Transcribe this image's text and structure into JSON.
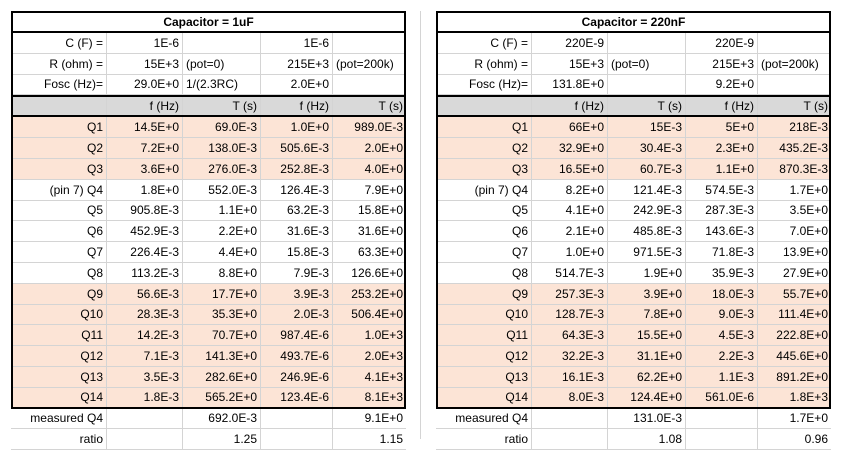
{
  "left": {
    "title": "Capacitor = 1uF",
    "params": [
      {
        "label": "C (F) =",
        "v1": "1E-6",
        "v2": "",
        "v3": "1E-6",
        "v4": ""
      },
      {
        "label": "R (ohm) =",
        "v1": "15E+3",
        "v2": "(pot=0)",
        "v3": "215E+3",
        "v4": "(pot=200k)"
      },
      {
        "label": "Fosc (Hz)=",
        "v1": "29.0E+0",
        "v2": "1/(2.3RC)",
        "v3": "2.0E+0",
        "v4": ""
      }
    ],
    "headers": [
      "",
      "f (Hz)",
      "T (s)",
      "f (Hz)",
      "T (s)"
    ],
    "rows": [
      [
        "Q1",
        "14.5E+0",
        "69.0E-3",
        "1.0E+0",
        "989.0E-3"
      ],
      [
        "Q2",
        "7.2E+0",
        "138.0E-3",
        "505.6E-3",
        "2.0E+0"
      ],
      [
        "Q3",
        "3.6E+0",
        "276.0E-3",
        "252.8E-3",
        "4.0E+0"
      ],
      [
        "(pin 7) Q4",
        "1.8E+0",
        "552.0E-3",
        "126.4E-3",
        "7.9E+0"
      ],
      [
        "Q5",
        "905.8E-3",
        "1.1E+0",
        "63.2E-3",
        "15.8E+0"
      ],
      [
        "Q6",
        "452.9E-3",
        "2.2E+0",
        "31.6E-3",
        "31.6E+0"
      ],
      [
        "Q7",
        "226.4E-3",
        "4.4E+0",
        "15.8E-3",
        "63.3E+0"
      ],
      [
        "Q8",
        "113.2E-3",
        "8.8E+0",
        "7.9E-3",
        "126.6E+0"
      ],
      [
        "Q9",
        "56.6E-3",
        "17.7E+0",
        "3.9E-3",
        "253.2E+0"
      ],
      [
        "Q10",
        "28.3E-3",
        "35.3E+0",
        "2.0E-3",
        "506.4E+0"
      ],
      [
        "Q11",
        "14.2E-3",
        "70.7E+0",
        "987.4E-6",
        "1.0E+3"
      ],
      [
        "Q12",
        "7.1E-3",
        "141.3E+0",
        "493.7E-6",
        "2.0E+3"
      ],
      [
        "Q13",
        "3.5E-3",
        "282.6E+0",
        "246.9E-6",
        "4.1E+3"
      ],
      [
        "Q14",
        "1.8E-3",
        "565.2E+0",
        "123.4E-6",
        "8.1E+3"
      ]
    ],
    "measured": {
      "label": "measured Q4",
      "v1": "",
      "v2": "692.0E-3",
      "v3": "",
      "v4": "9.1E+0"
    },
    "ratio": {
      "label": "ratio",
      "v1": "",
      "v2": "1.25",
      "v3": "",
      "v4": "1.15"
    }
  },
  "right": {
    "title": "Capacitor = 220nF",
    "params": [
      {
        "label": "C (F) =",
        "v1": "220E-9",
        "v2": "",
        "v3": "220E-9",
        "v4": ""
      },
      {
        "label": "R (ohm) =",
        "v1": "15E+3",
        "v2": "(pot=0)",
        "v3": "215E+3",
        "v4": "(pot=200k)"
      },
      {
        "label": "Fosc (Hz)=",
        "v1": "131.8E+0",
        "v2": "",
        "v3": "9.2E+0",
        "v4": ""
      }
    ],
    "headers": [
      "",
      "f (Hz)",
      "T (s)",
      "f (Hz)",
      "T (s)"
    ],
    "rows": [
      [
        "Q1",
        "66E+0",
        "15E-3",
        "5E+0",
        "218E-3"
      ],
      [
        "Q2",
        "32.9E+0",
        "30.4E-3",
        "2.3E+0",
        "435.2E-3"
      ],
      [
        "Q3",
        "16.5E+0",
        "60.7E-3",
        "1.1E+0",
        "870.3E-3"
      ],
      [
        "(pin 7) Q4",
        "8.2E+0",
        "121.4E-3",
        "574.5E-3",
        "1.7E+0"
      ],
      [
        "Q5",
        "4.1E+0",
        "242.9E-3",
        "287.3E-3",
        "3.5E+0"
      ],
      [
        "Q6",
        "2.1E+0",
        "485.8E-3",
        "143.6E-3",
        "7.0E+0"
      ],
      [
        "Q7",
        "1.0E+0",
        "971.5E-3",
        "71.8E-3",
        "13.9E+0"
      ],
      [
        "Q8",
        "514.7E-3",
        "1.9E+0",
        "35.9E-3",
        "27.9E+0"
      ],
      [
        "Q9",
        "257.3E-3",
        "3.9E+0",
        "18.0E-3",
        "55.7E+0"
      ],
      [
        "Q10",
        "128.7E-3",
        "7.8E+0",
        "9.0E-3",
        "111.4E+0"
      ],
      [
        "Q11",
        "64.3E-3",
        "15.5E+0",
        "4.5E-3",
        "222.8E+0"
      ],
      [
        "Q12",
        "32.2E-3",
        "31.1E+0",
        "2.2E-3",
        "445.6E+0"
      ],
      [
        "Q13",
        "16.1E-3",
        "62.2E+0",
        "1.1E-3",
        "891.2E+0"
      ],
      [
        "Q14",
        "8.0E-3",
        "124.4E+0",
        "561.0E-6",
        "1.8E+3"
      ]
    ],
    "measured": {
      "label": "measured Q4",
      "v1": "",
      "v2": "131.0E-3",
      "v3": "",
      "v4": "1.7E+0"
    },
    "ratio": {
      "label": "ratio",
      "v1": "",
      "v2": "1.08",
      "v3": "",
      "v4": "0.96"
    }
  },
  "colors": {
    "highlight": "#fce4d6",
    "header": "#d9d9d9",
    "grid": "#d4d4d4"
  }
}
